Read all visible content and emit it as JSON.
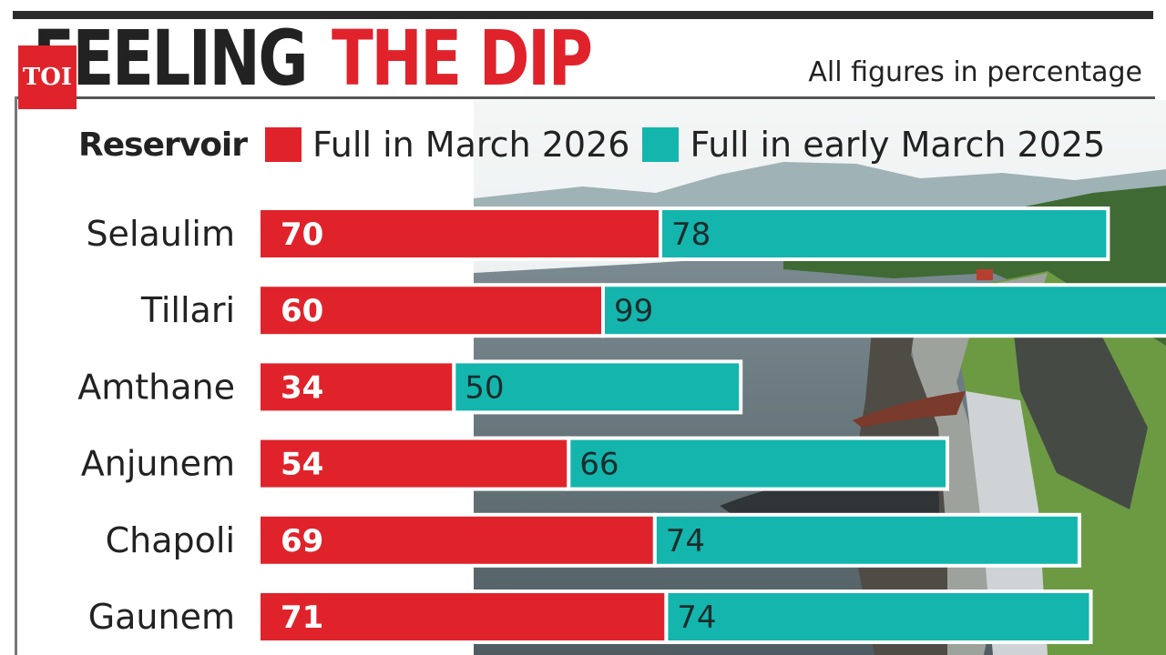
{
  "header": {
    "title_part1": "FEELING",
    "title_part2": "THE DIP",
    "logo_text": "TOI",
    "subtitle": "All figures in percentage"
  },
  "legend": {
    "title": "Reservoir",
    "items": [
      {
        "label": "Full in March 2026",
        "color": "#e0232b"
      },
      {
        "label": "Full in early March 2025",
        "color": "#14b5ad"
      }
    ]
  },
  "chart_data": {
    "type": "bar",
    "orientation": "horizontal",
    "categories": [
      "Selaulim",
      "Tillari",
      "Amthane",
      "Anjunem",
      "Chapoli",
      "Gaunem"
    ],
    "series": [
      {
        "name": "Full in March 2026",
        "values": [
          70,
          60,
          34,
          54,
          69,
          71
        ],
        "color": "#e0232b"
      },
      {
        "name": "Full in early March 2025",
        "values": [
          78,
          99,
          50,
          66,
          74,
          74
        ],
        "color": "#14b5ad"
      }
    ],
    "xlim": [
      0,
      100
    ],
    "grid": false,
    "legend_position": "top"
  }
}
